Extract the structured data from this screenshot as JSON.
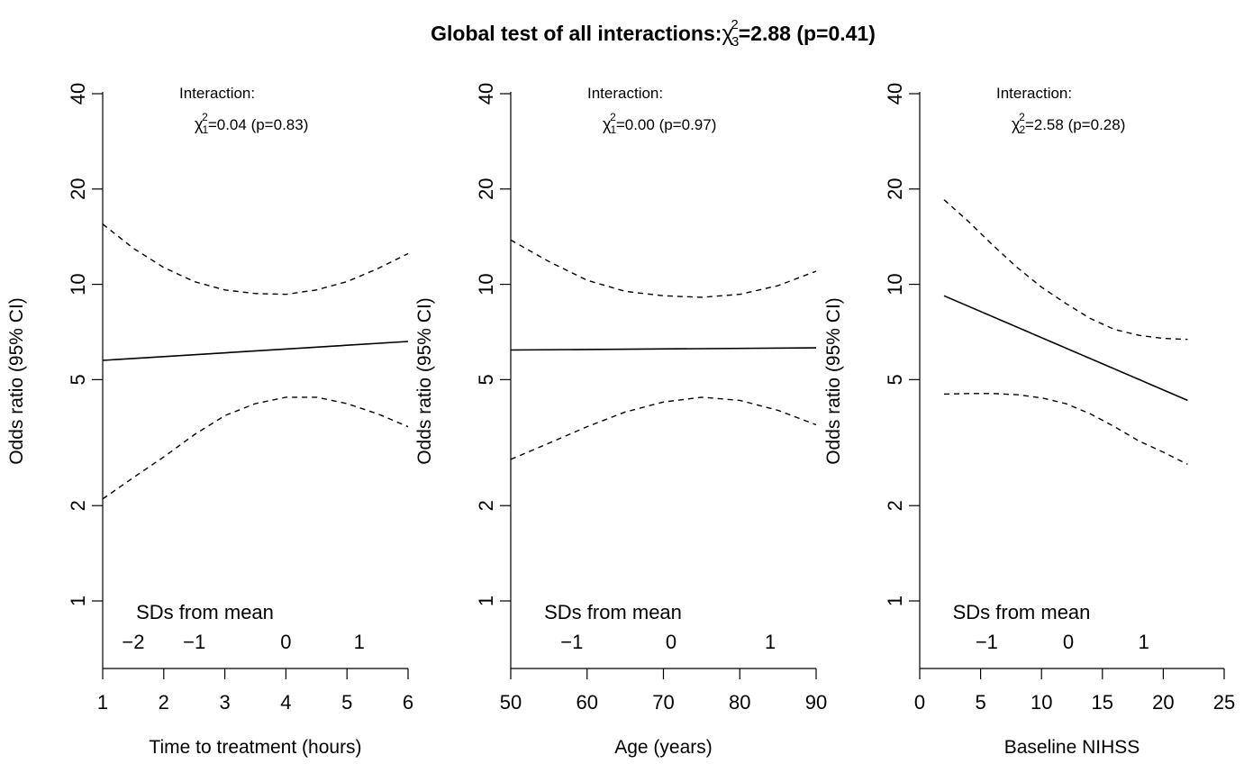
{
  "title": {
    "text": "Global test of all interactions:",
    "chi": "χ",
    "df": "3",
    "sq": "2",
    "stat": "=2.88 (p=0.41)"
  },
  "chart_data": [
    {
      "type": "line",
      "xlabel": "Time to treatment (hours)",
      "ylabel": "Odds ratio (95% CI)",
      "y_scale": "log",
      "y_ticks": [
        1,
        2,
        5,
        10,
        20,
        40
      ],
      "y_tick_labels": [
        "1",
        "2",
        "5",
        "10",
        "20",
        "40"
      ],
      "xlim": [
        1,
        6
      ],
      "x_ticks": [
        1,
        2,
        3,
        4,
        5,
        6
      ],
      "x_tick_labels": [
        "1",
        "2",
        "3",
        "4",
        "5",
        "6"
      ],
      "annotation": {
        "heading": "Interaction:",
        "chi": "χ",
        "df": "1",
        "sq": "2",
        "stat": "=0.04 (p=0.83)"
      },
      "sd_axis": {
        "label": "SDs from mean",
        "ticks": [
          "−2",
          "−1",
          "0",
          "1"
        ],
        "positions": [
          1.5,
          2.5,
          4.0,
          5.2
        ]
      },
      "series": [
        {
          "role": "estimate",
          "x": [
            1,
            6
          ],
          "y": [
            5.75,
            6.6
          ]
        },
        {
          "role": "upper",
          "x": [
            1,
            1.5,
            2,
            2.5,
            3,
            3.5,
            4,
            4.5,
            5,
            5.5,
            6
          ],
          "y": [
            15.5,
            13.0,
            11.3,
            10.2,
            9.6,
            9.35,
            9.3,
            9.6,
            10.2,
            11.2,
            12.5
          ]
        },
        {
          "role": "lower",
          "x": [
            1,
            1.5,
            2,
            2.5,
            3,
            3.5,
            4,
            4.5,
            5,
            5.5,
            6
          ],
          "y": [
            2.1,
            2.45,
            2.85,
            3.35,
            3.85,
            4.2,
            4.4,
            4.4,
            4.2,
            3.9,
            3.55
          ]
        }
      ]
    },
    {
      "type": "line",
      "xlabel": "Age (years)",
      "ylabel": "Odds ratio (95% CI)",
      "y_scale": "log",
      "y_ticks": [
        1,
        2,
        5,
        10,
        20,
        40
      ],
      "y_tick_labels": [
        "1",
        "2",
        "5",
        "10",
        "20",
        "40"
      ],
      "xlim": [
        50,
        90
      ],
      "x_ticks": [
        50,
        60,
        70,
        80,
        90
      ],
      "x_tick_labels": [
        "50",
        "60",
        "70",
        "80",
        "90"
      ],
      "annotation": {
        "heading": "Interaction:",
        "chi": "χ",
        "df": "1",
        "sq": "2",
        "stat": "=0.00 (p=0.97)"
      },
      "sd_axis": {
        "label": "SDs from mean",
        "ticks": [
          "−1",
          "0",
          "1"
        ],
        "positions": [
          58,
          71,
          84
        ]
      },
      "series": [
        {
          "role": "estimate",
          "x": [
            50,
            90
          ],
          "y": [
            6.2,
            6.3
          ]
        },
        {
          "role": "upper",
          "x": [
            50,
            55,
            60,
            65,
            70,
            75,
            80,
            85,
            90
          ],
          "y": [
            13.8,
            11.8,
            10.3,
            9.5,
            9.2,
            9.1,
            9.3,
            9.9,
            11.0
          ]
        },
        {
          "role": "lower",
          "x": [
            50,
            55,
            60,
            65,
            70,
            75,
            80,
            85,
            90
          ],
          "y": [
            2.8,
            3.15,
            3.55,
            3.95,
            4.25,
            4.4,
            4.3,
            4.0,
            3.6
          ]
        }
      ]
    },
    {
      "type": "line",
      "xlabel": "Baseline NIHSS",
      "ylabel": "Odds ratio (95% CI)",
      "y_scale": "log",
      "y_ticks": [
        1,
        2,
        5,
        10,
        20,
        40
      ],
      "y_tick_labels": [
        "1",
        "2",
        "5",
        "10",
        "20",
        "40"
      ],
      "xlim": [
        0,
        25
      ],
      "x_ticks": [
        0,
        5,
        10,
        15,
        20,
        25
      ],
      "x_tick_labels": [
        "0",
        "5",
        "10",
        "15",
        "20",
        "25"
      ],
      "annotation": {
        "heading": "Interaction:",
        "chi": "χ",
        "df": "2",
        "sq": "2",
        "stat": "=2.58 (p=0.28)"
      },
      "sd_axis": {
        "label": "SDs from mean",
        "ticks": [
          "−1",
          "0",
          "1"
        ],
        "positions": [
          5.5,
          12.2,
          18.4
        ]
      },
      "series": [
        {
          "role": "estimate",
          "x": [
            2,
            22
          ],
          "y": [
            9.2,
            4.3
          ]
        },
        {
          "role": "upper",
          "x": [
            2,
            4,
            6,
            8,
            10,
            12,
            14,
            16,
            18,
            20,
            22
          ],
          "y": [
            18.5,
            15.8,
            13.3,
            11.3,
            9.8,
            8.7,
            7.8,
            7.2,
            6.9,
            6.75,
            6.7
          ]
        },
        {
          "role": "lower",
          "x": [
            2,
            4,
            6,
            8,
            10,
            12,
            14,
            16,
            18,
            20,
            22
          ],
          "y": [
            4.5,
            4.52,
            4.52,
            4.48,
            4.38,
            4.2,
            3.9,
            3.55,
            3.2,
            2.95,
            2.7
          ]
        }
      ]
    }
  ]
}
